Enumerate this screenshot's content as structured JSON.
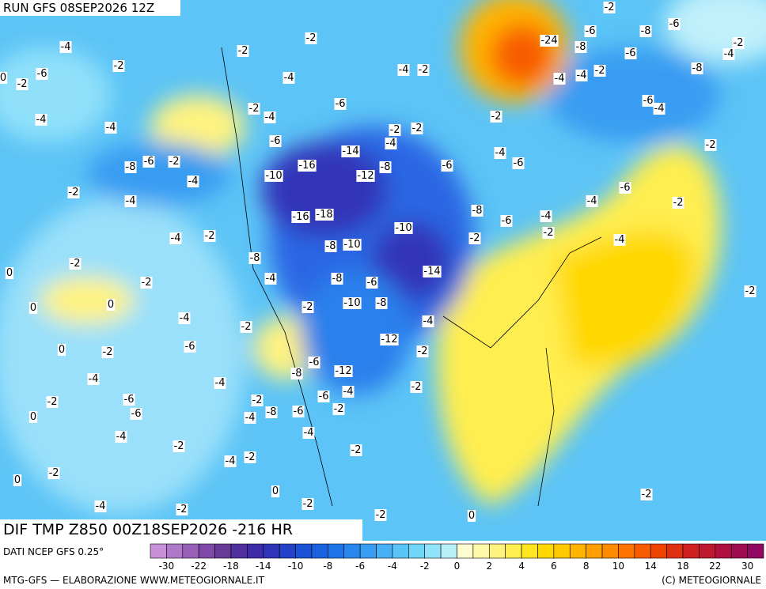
{
  "header": {
    "run": "RUN GFS 08SEP2026 12Z",
    "title": "DIF TMP Z850 00Z18SEP2026 -216 HR"
  },
  "footer": {
    "source": "DATI NCEP GFS 0.25°",
    "credit": "MTG-GFS — ELABORAZIONE WWW.METEOGIORNALE.IT",
    "copyright": "(C) METEOGIORNALE"
  },
  "colorbar": {
    "colors": [
      "#c890d8",
      "#b078c8",
      "#9860b8",
      "#8048a8",
      "#683a98",
      "#50309c",
      "#3f2ca8",
      "#3034b8",
      "#2442c8",
      "#1c52d6",
      "#1a62e0",
      "#1e74e8",
      "#2888ee",
      "#389cf2",
      "#48b0f4",
      "#5ac4f6",
      "#70d6f8",
      "#90e4fa",
      "#b8f0fa",
      "#fffcd0",
      "#fff8a8",
      "#fff380",
      "#ffee50",
      "#ffe620",
      "#ffd800",
      "#ffc800",
      "#ffb400",
      "#ffa000",
      "#ff8c00",
      "#ff7400",
      "#f85c00",
      "#ee4400",
      "#e03010",
      "#d02020",
      "#c01830",
      "#b01040",
      "#a00c50",
      "#900860"
    ],
    "ticks": [
      -30,
      -22,
      -18,
      -14,
      -10,
      -8,
      -6,
      -4,
      -2,
      0,
      2,
      4,
      6,
      8,
      10,
      14,
      18,
      22,
      30
    ]
  },
  "map": {
    "labels": [
      -4,
      -2,
      -6,
      -2,
      -4,
      -4,
      -8,
      -6,
      -2,
      -4,
      -2,
      -4,
      -4,
      -2,
      -2,
      -2,
      0,
      0,
      -4,
      -6,
      0,
      -2,
      -4,
      -6,
      -2,
      -6,
      0,
      -4,
      -2,
      -2,
      0,
      -4,
      -2,
      -2,
      -2,
      -4,
      -2,
      -4,
      -6,
      -6,
      -14,
      -16,
      -10,
      -8,
      -12,
      -16,
      -18,
      -8,
      -10,
      -10,
      -8,
      -4,
      -8,
      -6,
      -14,
      -10,
      -8,
      -2,
      -4,
      -2,
      -12,
      -2,
      -6,
      -12,
      -8,
      -4,
      -2,
      -6,
      -4,
      -2,
      -8,
      -6,
      -2,
      -4,
      -4,
      -2,
      -4,
      -2,
      0,
      -2,
      -2,
      0,
      -2,
      -2,
      -2,
      -4,
      -2,
      -4,
      -6,
      -8,
      -6,
      -6,
      -4,
      -2,
      -6,
      -4,
      -2,
      -4,
      -6,
      -8,
      -6,
      -8,
      -6,
      -8,
      -6,
      -2,
      -4,
      -4,
      -4,
      -2,
      -24,
      -2,
      -4,
      -2,
      -2,
      -4,
      -2,
      0,
      0,
      -2
    ]
  }
}
